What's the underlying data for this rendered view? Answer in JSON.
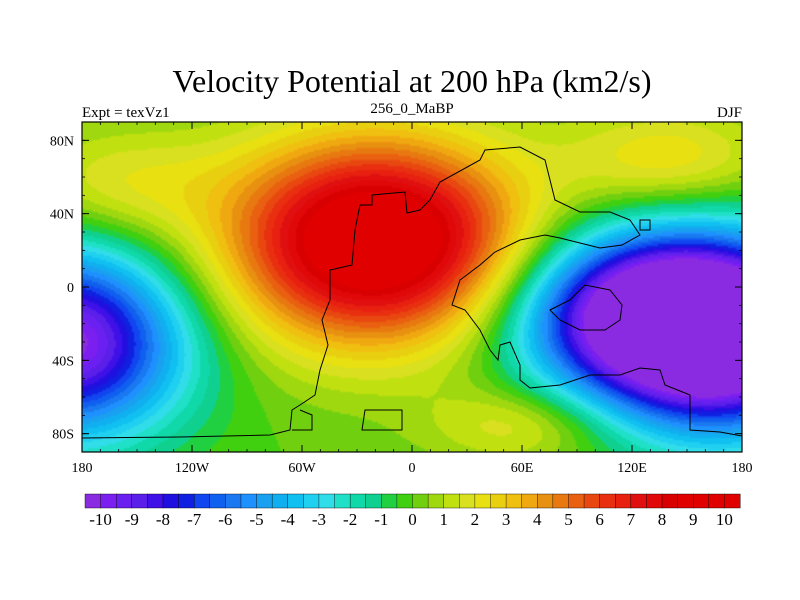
{
  "chart_data": {
    "type": "heatmap",
    "title": "Velocity Potential at 200 hPa (km2/s)",
    "subtitle_left": "Expt = texVz1",
    "subtitle_center": "256_0_MaBP",
    "subtitle_right": "DJF",
    "x_range": [
      -180,
      180
    ],
    "y_range": [
      -90,
      90
    ],
    "x_ticks": [
      {
        "value": -180,
        "label": "180"
      },
      {
        "value": -120,
        "label": "120W"
      },
      {
        "value": -60,
        "label": "60W"
      },
      {
        "value": 0,
        "label": "0"
      },
      {
        "value": 60,
        "label": "60E"
      },
      {
        "value": 120,
        "label": "120E"
      },
      {
        "value": 180,
        "label": "180"
      }
    ],
    "y_ticks": [
      {
        "value": 80,
        "label": "80N"
      },
      {
        "value": 40,
        "label": "40N"
      },
      {
        "value": 0,
        "label": "0"
      },
      {
        "value": -40,
        "label": "40S"
      },
      {
        "value": -80,
        "label": "80S"
      }
    ],
    "colorbar": {
      "min": -10.5,
      "max": 10.5,
      "step": 0.5,
      "labels": [
        "-10",
        "-9",
        "-8",
        "-7",
        "-6",
        "-5",
        "-4",
        "-3",
        "-2",
        "-1",
        "0",
        "1",
        "2",
        "3",
        "4",
        "5",
        "6",
        "7",
        "8",
        "9",
        "10"
      ],
      "colors": [
        "#8a2be2",
        "#7a1ff0",
        "#6a20f0",
        "#5a1fe8",
        "#4010e8",
        "#2010e0",
        "#1020e0",
        "#1045f0",
        "#1060f0",
        "#1a78f0",
        "#1e90ff",
        "#1aa0f0",
        "#10b0f0",
        "#10c0f0",
        "#20d0f0",
        "#30dde8",
        "#20e0c8",
        "#10d8a8",
        "#10d090",
        "#20d040",
        "#40d010",
        "#70d010",
        "#a0d810",
        "#c0e010",
        "#d8e020",
        "#e8e010",
        "#e8d010",
        "#f0c010",
        "#f0a810",
        "#e89010",
        "#e87810",
        "#e86010",
        "#e84810",
        "#e83010",
        "#e82010",
        "#e01010",
        "#e00808",
        "#d80000",
        "#e00000",
        "#e00000",
        "#e00000",
        "#e00000"
      ]
    },
    "field_centers": [
      {
        "lon": -20,
        "lat": 25,
        "value": 11.0,
        "sx": 55,
        "sy": 38
      },
      {
        "lon": 130,
        "lat": -15,
        "value": -11.0,
        "sx": 50,
        "sy": 30
      },
      {
        "lon": -190,
        "lat": -30,
        "value": -10.5,
        "sx": 45,
        "sy": 35
      },
      {
        "lon": 170,
        "lat": -30,
        "value": -10.5,
        "sx": 45,
        "sy": 35
      },
      {
        "lon": -160,
        "lat": 55,
        "value": 2.0,
        "sx": 40,
        "sy": 22
      },
      {
        "lon": 140,
        "lat": 70,
        "value": 2.5,
        "sx": 40,
        "sy": 20
      },
      {
        "lon": 60,
        "lat": -75,
        "value": 2.0,
        "sx": 35,
        "sy": 15
      }
    ]
  }
}
